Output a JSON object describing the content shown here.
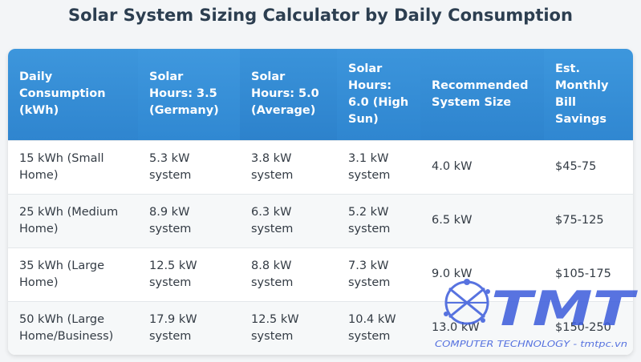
{
  "title": "Solar System Sizing Calculator by Daily Consumption",
  "headers": [
    "Daily Consumption (kWh)",
    "Solar Hours: 3.5 (Germany)",
    "Solar Hours: 5.0 (Average)",
    "Solar Hours: 6.0 (High Sun)",
    "Recommended System Size",
    "Est. Monthly Bill Savings"
  ],
  "rows": [
    [
      "15 kWh (Small Home)",
      "5.3 kW system",
      "3.8 kW system",
      "3.1 kW system",
      "4.0 kW",
      "$45-75"
    ],
    [
      "25 kWh (Medium Home)",
      "8.9 kW system",
      "6.3 kW system",
      "5.2 kW system",
      "6.5 kW",
      "$75-125"
    ],
    [
      "35 kWh (Large Home)",
      "12.5 kW system",
      "8.8 kW system",
      "7.3 kW system",
      "9.0 kW",
      "$105-175"
    ],
    [
      "50 kWh (Large Home/Business)",
      "17.9 kW system",
      "12.5 kW system",
      "10.4 kW system",
      "13.0 kW",
      "$150-250"
    ]
  ],
  "watermark": {
    "logo_text": "TMT",
    "tagline": "COMPUTER TECHNOLOGY - tmtpc.vn",
    "color": "#3b5bdb"
  },
  "colors": {
    "header_bg": "#3b8fd6",
    "title": "#2c3e50"
  }
}
